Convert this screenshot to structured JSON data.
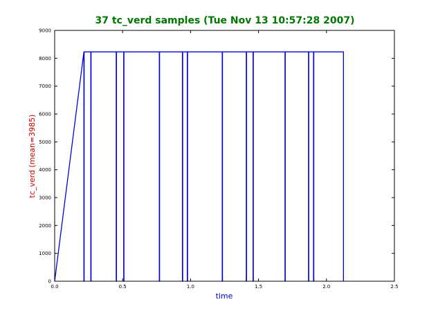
{
  "chart_data": {
    "type": "line",
    "title": "37 tc_verd samples (Tue Nov 13 10:57:28 2007)",
    "xlabel": "time",
    "ylabel": "tc_verd (mean=3985)",
    "xlim": [
      0.0,
      2.5
    ],
    "ylim": [
      0,
      9000
    ],
    "xticks": [
      "0.0",
      "0.5",
      "1.0",
      "1.5",
      "2.0",
      "2.5"
    ],
    "yticks": [
      "0",
      "1000",
      "2000",
      "3000",
      "4000",
      "5000",
      "6000",
      "7000",
      "8000",
      "9000"
    ],
    "grid": false,
    "legend": "none",
    "colors": {
      "title": "#007700",
      "xlabel": "#0000cc",
      "ylabel": "#cc0000",
      "series": "#0000dd",
      "axes": "#000000"
    },
    "series": [
      {
        "x": [
          0.0,
          0.215,
          0.215,
          0.217,
          0.217,
          0.266,
          0.266,
          0.268,
          0.268,
          0.453,
          0.453,
          0.455,
          0.455,
          0.508,
          0.508,
          0.51,
          0.51,
          0.77,
          0.77,
          0.772,
          0.772,
          0.94,
          0.94,
          0.942,
          0.942,
          0.976,
          0.976,
          0.978,
          0.978,
          1.233,
          1.233,
          1.235,
          1.235,
          1.41,
          1.41,
          1.412,
          1.412,
          1.46,
          1.46,
          1.462,
          1.462,
          1.695,
          1.695,
          1.697,
          1.697,
          1.868,
          1.868,
          1.87,
          1.87,
          1.905,
          1.905,
          1.907,
          1.907,
          2.125,
          2.125
        ],
        "y": [
          0,
          8230,
          0,
          0,
          8230,
          8230,
          0,
          0,
          8230,
          8230,
          0,
          0,
          8230,
          8230,
          0,
          0,
          8230,
          8230,
          0,
          0,
          8230,
          8230,
          0,
          0,
          8230,
          8230,
          0,
          0,
          8230,
          8230,
          0,
          0,
          8230,
          8230,
          0,
          0,
          8230,
          8230,
          0,
          0,
          8230,
          8230,
          0,
          0,
          8230,
          8230,
          0,
          0,
          8230,
          8230,
          0,
          0,
          8230,
          8230,
          0
        ]
      }
    ]
  }
}
